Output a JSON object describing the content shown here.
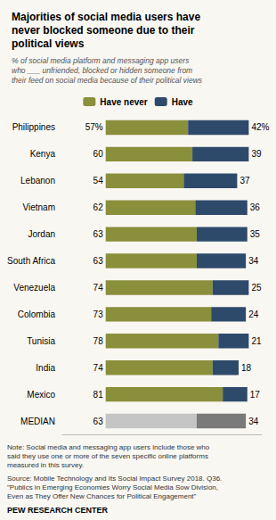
{
  "chart_data": {
    "type": "bar",
    "orientation": "horizontal",
    "stacked": true,
    "title": "Majorities of social media users have\nnever blocked someone due to their\npolitical views",
    "subtitle": "% of social media platform and messaging app users\nwho ___ unfriended, blocked or hidden someone from\ntheir feed on social media because of their political views",
    "categories": [
      "Philippines",
      "Kenya",
      "Lebanon",
      "Vietnam",
      "Jordan",
      "South Africa",
      "Venezuela",
      "Colombia",
      "Tunisia",
      "India",
      "Mexico",
      "MEDIAN"
    ],
    "series": [
      {
        "name": "Have never",
        "values": [
          57,
          60,
          54,
          62,
          63,
          63,
          74,
          73,
          78,
          74,
          81,
          63
        ],
        "value_labels": [
          "57%",
          "60",
          "54",
          "62",
          "63",
          "63",
          "74",
          "73",
          "78",
          "74",
          "81",
          "63"
        ],
        "colors": [
          "#8a8f3b",
          "#8a8f3b",
          "#8a8f3b",
          "#8a8f3b",
          "#8a8f3b",
          "#8a8f3b",
          "#8a8f3b",
          "#8a8f3b",
          "#8a8f3b",
          "#8a8f3b",
          "#8a8f3b",
          "#c5c5c5"
        ]
      },
      {
        "name": "Have",
        "values": [
          42,
          39,
          37,
          36,
          35,
          34,
          25,
          24,
          21,
          18,
          17,
          34
        ],
        "value_labels": [
          "42%",
          "39",
          "37",
          "36",
          "35",
          "34",
          "25",
          "24",
          "21",
          "18",
          "17",
          "34"
        ],
        "colors": [
          "#2e4a6b",
          "#2e4a6b",
          "#2e4a6b",
          "#2e4a6b",
          "#2e4a6b",
          "#2e4a6b",
          "#2e4a6b",
          "#2e4a6b",
          "#2e4a6b",
          "#2e4a6b",
          "#2e4a6b",
          "#7a7a7a"
        ]
      }
    ],
    "xlim": [
      -30,
      108
    ],
    "tick_labels": "y",
    "data_labels": true,
    "grid": false,
    "legend": "top",
    "annotations": [
      "Note: Social media and messaging app users include those who\nsaid they use one or more of the seven specific online platforms\nmeasured in this survey.",
      "Source: Mobile Technology and Its Social Impact Survey 2018. Q36.\n\"Publics in Emerging Economies Worry Social Media Sow Division,\nEven as They Offer New Chances for Political Engagement\"",
      "PEW RESEARCH CENTER"
    ]
  }
}
